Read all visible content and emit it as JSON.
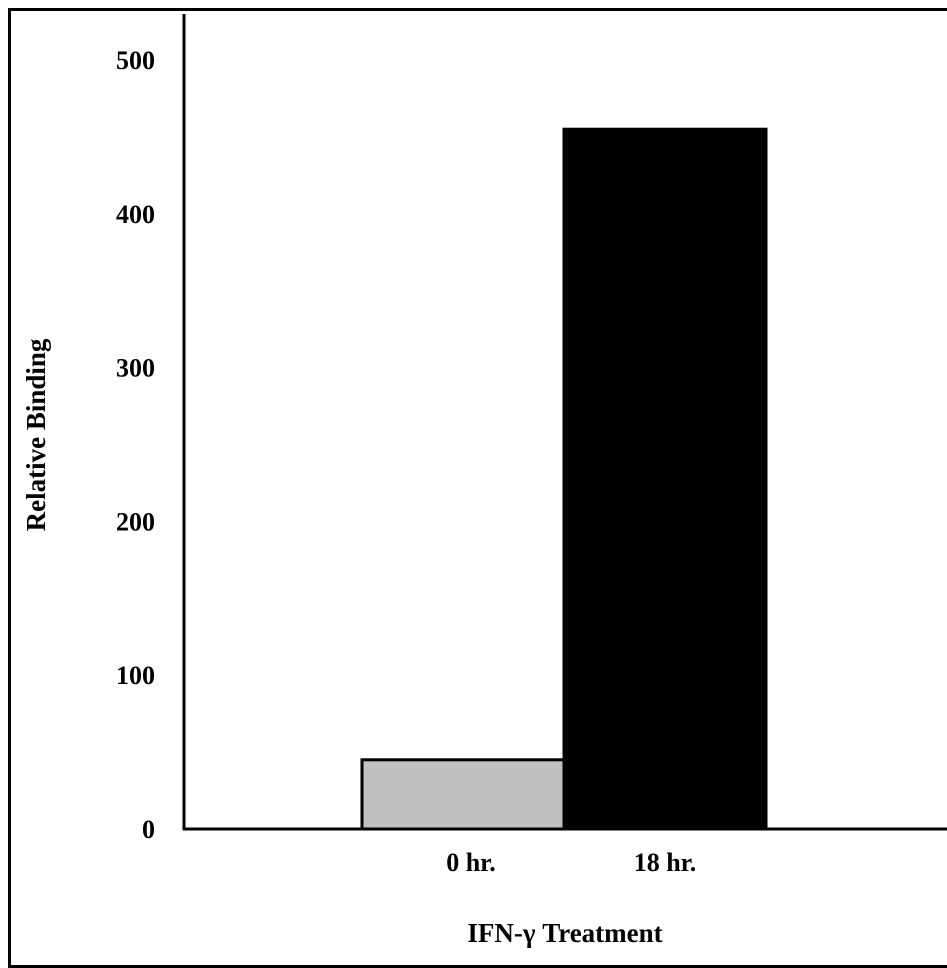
{
  "chart_data": {
    "type": "bar",
    "title": "",
    "xlabel": "IFN-γ Treatment",
    "ylabel": "Relative Binding",
    "categories": [
      "0 hr.",
      "18 hr."
    ],
    "values": [
      45,
      455
    ],
    "bar_colors": [
      "#c0c0c0",
      "#000000"
    ],
    "ylim": [
      0,
      500
    ],
    "yticks": [
      0,
      100,
      200,
      300,
      400,
      500
    ],
    "grid": false,
    "legend": "none"
  }
}
